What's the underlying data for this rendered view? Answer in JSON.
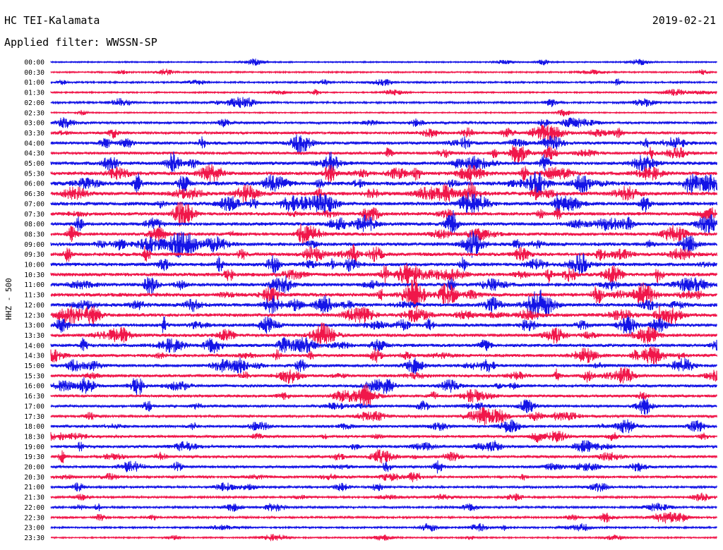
{
  "header": {
    "station": "HC TEI-Kalamata",
    "date": "2019-02-21",
    "filter": "Applied filter: WWSSN-SP"
  },
  "chart_data": {
    "type": "line",
    "ylabel": "HHZ - 500",
    "colors": [
      "#1414e6",
      "#f0174a"
    ],
    "row_labels": [
      "00:00",
      "00:30",
      "01:00",
      "01:30",
      "02:00",
      "02:30",
      "03:00",
      "03:30",
      "04:00",
      "04:30",
      "05:00",
      "05:30",
      "06:00",
      "06:30",
      "07:00",
      "07:30",
      "08:00",
      "08:30",
      "09:00",
      "09:30",
      "10:00",
      "10:30",
      "11:00",
      "11:30",
      "12:00",
      "12:30",
      "13:00",
      "13:30",
      "14:00",
      "14:30",
      "15:00",
      "15:30",
      "16:00",
      "16:30",
      "17:00",
      "17:30",
      "18:00",
      "18:30",
      "19:00",
      "19:30",
      "20:00",
      "20:30",
      "21:00",
      "21:30",
      "22:00",
      "22:30",
      "23:00",
      "23:30"
    ],
    "activity": [
      0.5,
      0.6,
      0.8,
      0.6,
      0.9,
      0.5,
      1.2,
      1.5,
      2.0,
      1.8,
      2.2,
      2.5,
      2.6,
      2.5,
      2.4,
      2.2,
      2.2,
      2.1,
      2.4,
      2.4,
      2.3,
      2.4,
      2.4,
      2.5,
      2.4,
      2.3,
      2.2,
      2.2,
      2.1,
      2.0,
      1.9,
      1.8,
      1.8,
      1.6,
      1.5,
      1.5,
      1.6,
      1.5,
      1.6,
      1.5,
      1.5,
      1.3,
      1.1,
      1.0,
      1.0,
      1.0,
      0.8,
      0.6
    ]
  }
}
